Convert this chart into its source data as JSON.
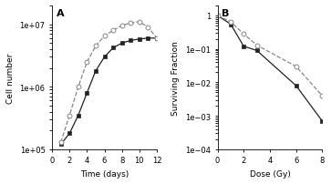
{
  "panel_A": {
    "title": "A",
    "xlabel": "Time (days)",
    "ylabel": "Cell number",
    "xlim": [
      0,
      12
    ],
    "ylim_log": [
      100000.0,
      20000000.0
    ],
    "solid_x": [
      1,
      2,
      3,
      4,
      5,
      6,
      7,
      8,
      9,
      10,
      11,
      12
    ],
    "solid_y": [
      120000.0,
      180000.0,
      350000.0,
      800000.0,
      1800000.0,
      3000000.0,
      4200000.0,
      5000000.0,
      5500000.0,
      5800000.0,
      6000000.0,
      6000000.0
    ],
    "dashed_x": [
      1,
      2,
      3,
      4,
      5,
      6,
      7,
      8,
      9,
      10,
      11,
      12
    ],
    "dashed_y": [
      130000.0,
      350000.0,
      1000000.0,
      2500000.0,
      4500000.0,
      6500000.0,
      8000000.0,
      9500000.0,
      10500000.0,
      11000000.0,
      9000000.0,
      6000000.0
    ]
  },
  "panel_B": {
    "title": "B",
    "xlabel": "Dose (Gy)",
    "ylabel": "Surviving Fraction",
    "xlim": [
      0,
      8
    ],
    "ylim_log": [
      0.0001,
      2.0
    ],
    "solid_x": [
      0,
      1,
      2,
      3,
      6,
      8
    ],
    "solid_y": [
      1.0,
      0.55,
      0.12,
      0.09,
      0.008,
      0.0007
    ],
    "dashed_x": [
      0,
      1,
      2,
      3,
      6,
      8
    ],
    "dashed_y": [
      1.0,
      0.65,
      0.28,
      0.13,
      0.03,
      0.004
    ]
  },
  "color_solid": "#222222",
  "color_dashed": "#888888",
  "bg_color": "#ffffff",
  "linewidth": 0.9,
  "markersize": 3.5
}
